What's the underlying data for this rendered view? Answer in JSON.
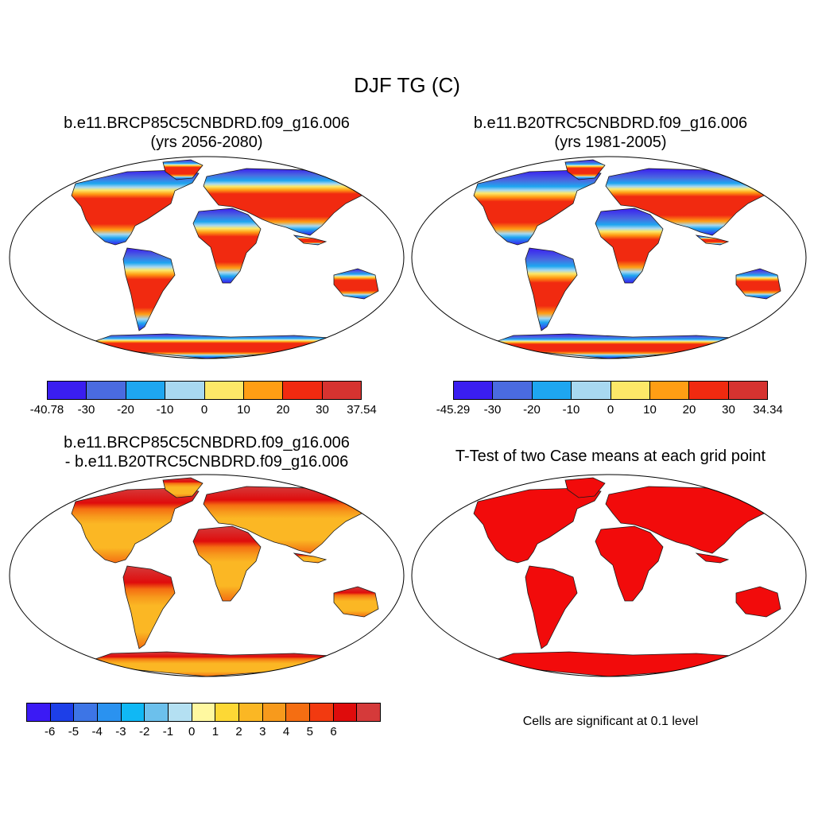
{
  "title": "DJF TG (C)",
  "panels": {
    "top_left": {
      "line1": "b.e11.BRCP85C5CNBDRD.f09_g16.006",
      "line2": "(yrs 2056-2080)"
    },
    "top_right": {
      "line1": "b.e11.B20TRC5CNBDRD.f09_g16.006",
      "line2": "(yrs 1981-2005)"
    },
    "bottom_left": {
      "line1": "b.e11.BRCP85C5CNBDRD.f09_g16.006",
      "line2": "- b.e11.B20TRC5CNBDRD.f09_g16.006"
    },
    "bottom_right": {
      "line1": "T-Test of two Case means at each grid point"
    }
  },
  "colorbars": {
    "top_left": {
      "colors": [
        "#3a1ef0",
        "#4a6be0",
        "#1ea6f0",
        "#a8d8f0",
        "#fde868",
        "#ff9e14",
        "#f12a10",
        "#d63330"
      ],
      "labels": [
        "-40.78",
        "-30",
        "-20",
        "-10",
        "0",
        "10",
        "20",
        "30",
        "37.54"
      ]
    },
    "top_right": {
      "colors": [
        "#3a1ef0",
        "#4a6be0",
        "#1ea6f0",
        "#a8d8f0",
        "#fde868",
        "#ff9e14",
        "#f12a10",
        "#d63330"
      ],
      "labels": [
        "-45.29",
        "-30",
        "-20",
        "-10",
        "0",
        "10",
        "20",
        "30",
        "34.34"
      ]
    },
    "bottom_left": {
      "colors": [
        "#3b1af5",
        "#1d3fe8",
        "#3d75e6",
        "#2a92f0",
        "#10b8f5",
        "#6cc0ec",
        "#b4e0f2",
        "#fff8a0",
        "#fdd835",
        "#fbb724",
        "#f79a1c",
        "#f56e12",
        "#f23a10",
        "#df0c0c",
        "#d53a3a"
      ],
      "labels": [
        "-6",
        "-5",
        "-4",
        "-3",
        "-2",
        "-1",
        "0",
        "1",
        "2",
        "3",
        "4",
        "5",
        "6"
      ]
    }
  },
  "significance_note": "Cells are significant at 0.1 level"
}
